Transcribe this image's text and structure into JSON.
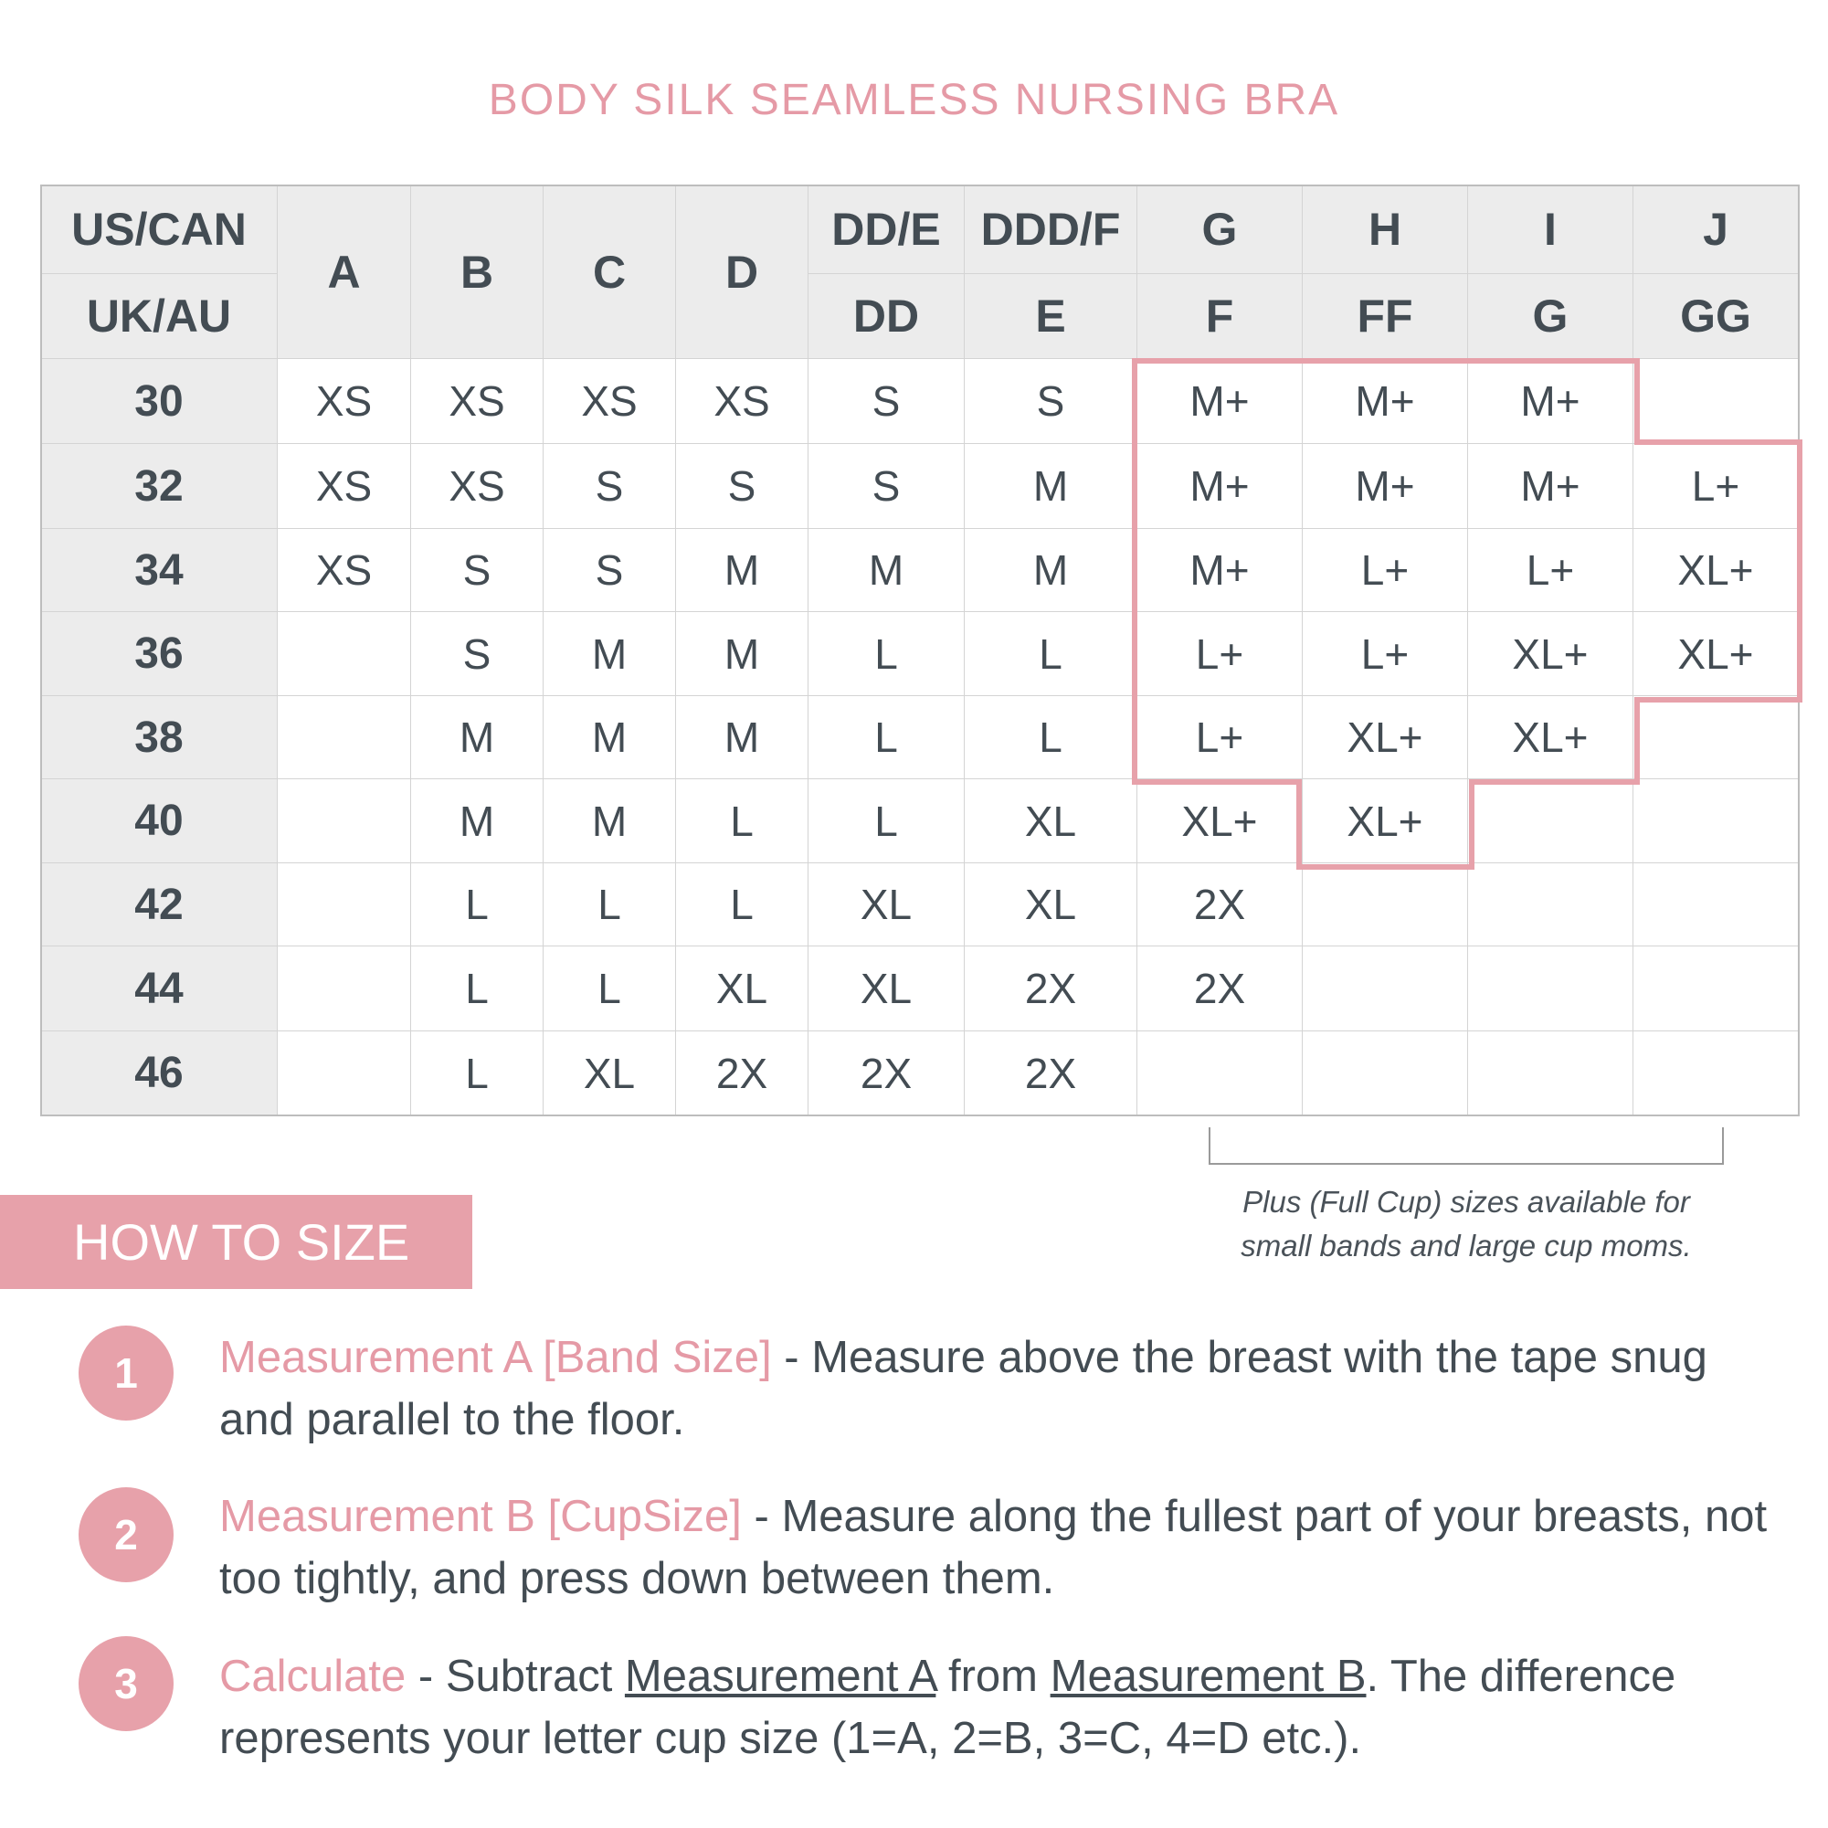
{
  "title": "BODY SILK SEAMLESS NURSING BRA",
  "table": {
    "region_labels": [
      "US/CAN",
      "UK/AU"
    ],
    "single_cups": [
      "A",
      "B",
      "C",
      "D"
    ],
    "us_cups": [
      "DD/E",
      "DDD/F",
      "G",
      "H",
      "I",
      "J"
    ],
    "uk_cups": [
      "DD",
      "E",
      "F",
      "FF",
      "G",
      "GG"
    ],
    "bands": [
      "30",
      "32",
      "34",
      "36",
      "38",
      "40",
      "42",
      "44",
      "46"
    ],
    "rows": [
      [
        "XS",
        "XS",
        "XS",
        "XS",
        "S",
        "S",
        "M+",
        "M+",
        "M+",
        ""
      ],
      [
        "XS",
        "XS",
        "S",
        "S",
        "S",
        "M",
        "M+",
        "M+",
        "M+",
        "L+"
      ],
      [
        "XS",
        "S",
        "S",
        "M",
        "M",
        "M",
        "M+",
        "L+",
        "L+",
        "XL+"
      ],
      [
        "",
        "S",
        "M",
        "M",
        "L",
        "L",
        "L+",
        "L+",
        "XL+",
        "XL+"
      ],
      [
        "",
        "M",
        "M",
        "M",
        "L",
        "L",
        "L+",
        "XL+",
        "XL+",
        ""
      ],
      [
        "",
        "M",
        "M",
        "L",
        "L",
        "XL",
        "XL+",
        "XL+",
        "",
        ""
      ],
      [
        "",
        "L",
        "L",
        "L",
        "XL",
        "XL",
        "2X",
        "",
        "",
        ""
      ],
      [
        "",
        "L",
        "L",
        "XL",
        "XL",
        "2X",
        "2X",
        "",
        "",
        ""
      ],
      [
        "",
        "L",
        "XL",
        "2X",
        "2X",
        "2X",
        "",
        "",
        "",
        ""
      ]
    ],
    "highlight_color": "#e7a1aa"
  },
  "note": {
    "line1": "Plus (Full Cup) sizes available for",
    "line2": "small bands and large cup moms."
  },
  "how_to": {
    "heading": "HOW TO SIZE",
    "steps": [
      {
        "num": "1",
        "label": "Measurement A [Band Size]",
        "text": " - Measure above the breast with the tape snug and parallel to the floor."
      },
      {
        "num": "2",
        "label": "Measurement B [CupSize]",
        "text": " - Measure along the fullest part of your breasts, not too tightly, and press down between them."
      },
      {
        "num": "3",
        "label": "Calculate",
        "pre": " - Subtract ",
        "ref_a": "Measurement A",
        "mid": " from ",
        "ref_b": "Measurement B",
        "post": ". The difference represents your letter cup size (1=A, 2=B, 3=C, 4=D etc.)."
      }
    ]
  },
  "colors": {
    "accent": "#e59aa6",
    "text": "#434c53",
    "header_bg": "#ececec"
  }
}
